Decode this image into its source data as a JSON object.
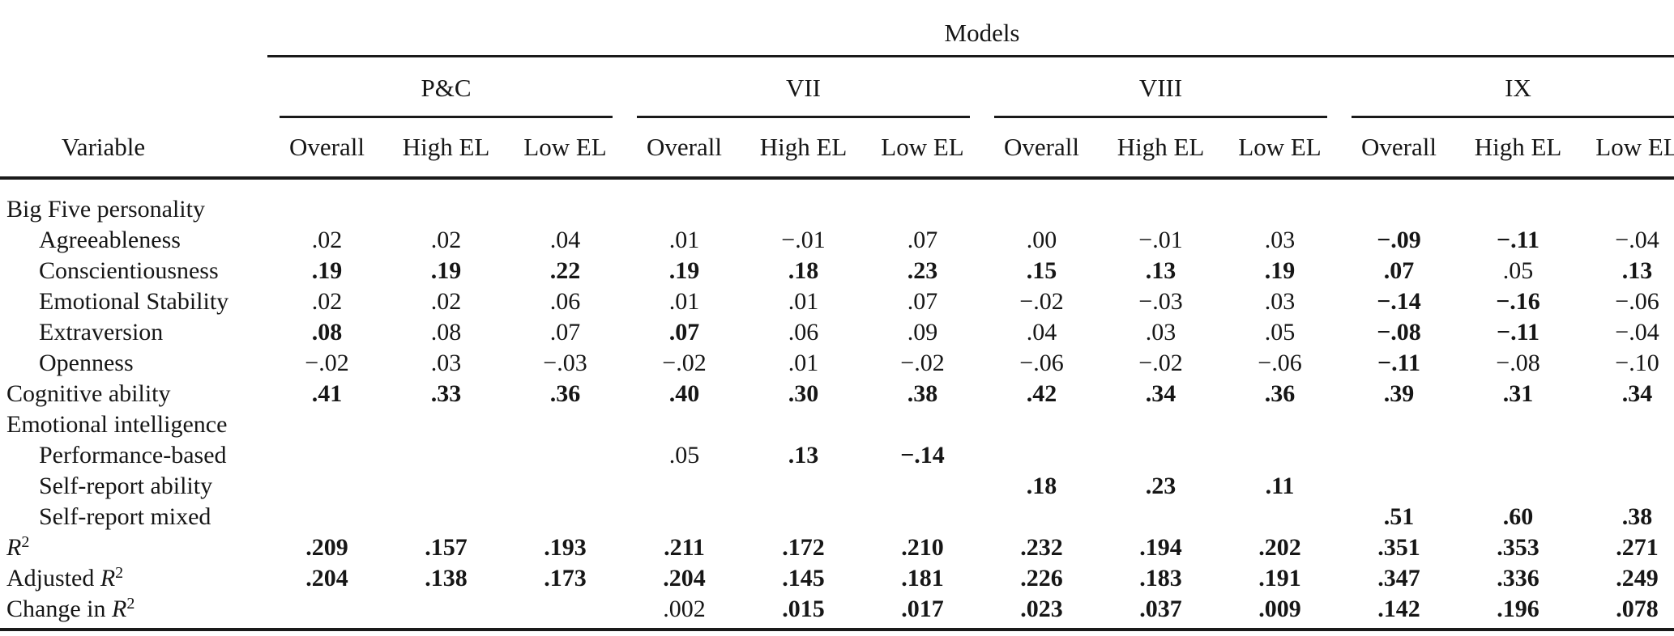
{
  "table": {
    "title": "Models",
    "variable_header": "Variable",
    "groups": [
      {
        "label": "P&C"
      },
      {
        "label": "VII"
      },
      {
        "label": "VIII"
      },
      {
        "label": "IX"
      }
    ],
    "columns": [
      "Overall",
      "High EL",
      "Low EL",
      "Overall",
      "High EL",
      "Low EL",
      "Overall",
      "High EL",
      "Low EL",
      "Overall",
      "High EL",
      "Low EL"
    ],
    "rows": [
      {
        "label": "Big Five personality",
        "indent": false,
        "cells": [
          "",
          "",
          "",
          "",
          "",
          "",
          "",
          "",
          "",
          "",
          "",
          ""
        ],
        "bold": [
          0,
          0,
          0,
          0,
          0,
          0,
          0,
          0,
          0,
          0,
          0,
          0
        ]
      },
      {
        "label": "Agreeableness",
        "indent": true,
        "cells": [
          ".02",
          ".02",
          ".04",
          ".01",
          "−.01",
          ".07",
          ".00",
          "−.01",
          ".03",
          "−.09",
          "−.11",
          "−.04"
        ],
        "bold": [
          0,
          0,
          0,
          0,
          0,
          0,
          0,
          0,
          0,
          1,
          1,
          0
        ]
      },
      {
        "label": "Conscientiousness",
        "indent": true,
        "cells": [
          ".19",
          ".19",
          ".22",
          ".19",
          ".18",
          ".23",
          ".15",
          ".13",
          ".19",
          ".07",
          ".05",
          ".13"
        ],
        "bold": [
          1,
          1,
          1,
          1,
          1,
          1,
          1,
          1,
          1,
          1,
          0,
          1
        ]
      },
      {
        "label": "Emotional Stability",
        "indent": true,
        "cells": [
          ".02",
          ".02",
          ".06",
          ".01",
          ".01",
          ".07",
          "−.02",
          "−.03",
          ".03",
          "−.14",
          "−.16",
          "−.06"
        ],
        "bold": [
          0,
          0,
          0,
          0,
          0,
          0,
          0,
          0,
          0,
          1,
          1,
          0
        ]
      },
      {
        "label": "Extraversion",
        "indent": true,
        "cells": [
          ".08",
          ".08",
          ".07",
          ".07",
          ".06",
          ".09",
          ".04",
          ".03",
          ".05",
          "−.08",
          "−.11",
          "−.04"
        ],
        "bold": [
          1,
          0,
          0,
          1,
          0,
          0,
          0,
          0,
          0,
          1,
          1,
          0
        ]
      },
      {
        "label": "Openness",
        "indent": true,
        "cells": [
          "−.02",
          ".03",
          "−.03",
          "−.02",
          ".01",
          "−.02",
          "−.06",
          "−.02",
          "−.06",
          "−.11",
          "−.08",
          "−.10"
        ],
        "bold": [
          0,
          0,
          0,
          0,
          0,
          0,
          0,
          0,
          0,
          1,
          0,
          0
        ]
      },
      {
        "label": "Cognitive ability",
        "indent": false,
        "cells": [
          ".41",
          ".33",
          ".36",
          ".40",
          ".30",
          ".38",
          ".42",
          ".34",
          ".36",
          ".39",
          ".31",
          ".34"
        ],
        "bold": [
          1,
          1,
          1,
          1,
          1,
          1,
          1,
          1,
          1,
          1,
          1,
          1
        ]
      },
      {
        "label": "Emotional intelligence",
        "indent": false,
        "cells": [
          "",
          "",
          "",
          "",
          "",
          "",
          "",
          "",
          "",
          "",
          "",
          ""
        ],
        "bold": [
          0,
          0,
          0,
          0,
          0,
          0,
          0,
          0,
          0,
          0,
          0,
          0
        ]
      },
      {
        "label": "Performance-based",
        "indent": true,
        "cells": [
          "",
          "",
          "",
          ".05",
          ".13",
          "−.14",
          "",
          "",
          "",
          "",
          "",
          ""
        ],
        "bold": [
          0,
          0,
          0,
          0,
          1,
          1,
          0,
          0,
          0,
          0,
          0,
          0
        ]
      },
      {
        "label": "Self-report ability",
        "indent": true,
        "cells": [
          "",
          "",
          "",
          "",
          "",
          "",
          ".18",
          ".23",
          ".11",
          "",
          "",
          ""
        ],
        "bold": [
          0,
          0,
          0,
          0,
          0,
          0,
          1,
          1,
          1,
          0,
          0,
          0
        ]
      },
      {
        "label": "Self-report mixed",
        "indent": true,
        "cells": [
          "",
          "",
          "",
          "",
          "",
          "",
          "",
          "",
          "",
          ".51",
          ".60",
          ".38"
        ],
        "bold": [
          0,
          0,
          0,
          0,
          0,
          0,
          0,
          0,
          0,
          1,
          1,
          1
        ]
      },
      {
        "label_prefix": "",
        "label_var": "R",
        "label_sup": "2",
        "indent": false,
        "cells": [
          ".209",
          ".157",
          ".193",
          ".211",
          ".172",
          ".210",
          ".232",
          ".194",
          ".202",
          ".351",
          ".353",
          ".271"
        ],
        "bold": [
          1,
          1,
          1,
          1,
          1,
          1,
          1,
          1,
          1,
          1,
          1,
          1
        ]
      },
      {
        "label_prefix": "Adjusted ",
        "label_var": "R",
        "label_sup": "2",
        "indent": false,
        "cells": [
          ".204",
          ".138",
          ".173",
          ".204",
          ".145",
          ".181",
          ".226",
          ".183",
          ".191",
          ".347",
          ".336",
          ".249"
        ],
        "bold": [
          1,
          1,
          1,
          1,
          1,
          1,
          1,
          1,
          1,
          1,
          1,
          1
        ]
      },
      {
        "label_prefix": "Change in ",
        "label_var": "R",
        "label_sup": "2",
        "indent": false,
        "cells": [
          "",
          "",
          "",
          ".002",
          ".015",
          ".017",
          ".023",
          ".037",
          ".009",
          ".142",
          ".196",
          ".078"
        ],
        "bold": [
          0,
          0,
          0,
          0,
          1,
          1,
          1,
          1,
          1,
          1,
          1,
          1
        ]
      }
    ]
  }
}
